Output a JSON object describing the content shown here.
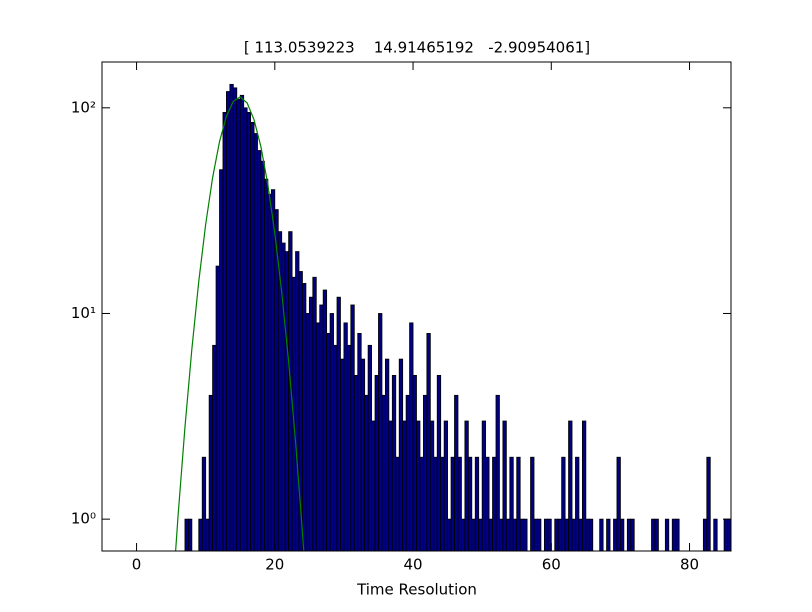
{
  "chart_data": {
    "type": "histogram",
    "title": "[ 113.0539223    14.91465192   -2.90954061]",
    "x_label": "Time Resolution",
    "bins": [
      7,
      7.5,
      8,
      8.5,
      9,
      9.5,
      10,
      10.5,
      11,
      11.5,
      12,
      12.5,
      13,
      13.5,
      14,
      14.5,
      15,
      15.5,
      16,
      16.5,
      17,
      17.5,
      18,
      18.5,
      19,
      19.5,
      20,
      20.5,
      21,
      21.5,
      22,
      22.5,
      23,
      23.5,
      24,
      24.5,
      25,
      25.5,
      26,
      26.5,
      27,
      27.5,
      28,
      28.5,
      29,
      29.5,
      30,
      30.5,
      31,
      31.5,
      32,
      32.5,
      33,
      33.5,
      34,
      34.5,
      35,
      35.5,
      36,
      36.5,
      37,
      37.5,
      38,
      38.5,
      39,
      39.5,
      40,
      40.5,
      41,
      41.5,
      42,
      42.5,
      43,
      43.5,
      44,
      44.5,
      45,
      45.5,
      46,
      46.5,
      47,
      47.5,
      48,
      48.5,
      49,
      49.5,
      50,
      50.5,
      51,
      51.5,
      52,
      52.5,
      53,
      53.5,
      54,
      54.5,
      55,
      55.5,
      56,
      56.5,
      57,
      57.5,
      58,
      58.5,
      59,
      59.5,
      60,
      60.5,
      61,
      61.5,
      62,
      62.5,
      63,
      63.5,
      64,
      64.5,
      65,
      65.5,
      66,
      66.5,
      67,
      67.5,
      68,
      68.5,
      69,
      69.5,
      70,
      70.5,
      71,
      71.5,
      72,
      72.5,
      73,
      73.5,
      74,
      74.5,
      75,
      75.5,
      76,
      76.5,
      77,
      77.5,
      78,
      78.5,
      79,
      79.5,
      80,
      80.5,
      81,
      81.5,
      82,
      82.5,
      83,
      83.5,
      84,
      84.5,
      85,
      85.5,
      86
    ],
    "counts": [
      1,
      1,
      0,
      0,
      1,
      2,
      1,
      4,
      7,
      17,
      50,
      95,
      120,
      130,
      125,
      110,
      115,
      100,
      95,
      85,
      75,
      62,
      55,
      45,
      38,
      40,
      32,
      25,
      22,
      20,
      25,
      15,
      20,
      16,
      14,
      10,
      12,
      15,
      9,
      11,
      13,
      8,
      10,
      7,
      12,
      6,
      9,
      7,
      11,
      5,
      8,
      6,
      4,
      7,
      3,
      5,
      10,
      4,
      6,
      3,
      5,
      2,
      6,
      3,
      4,
      9,
      5,
      3,
      2,
      4,
      8,
      3,
      2,
      5,
      2,
      3,
      1,
      2,
      4,
      2,
      1,
      3,
      2,
      1,
      2,
      1,
      3,
      2,
      1,
      2,
      4,
      1,
      3,
      1,
      2,
      1,
      2,
      1,
      1,
      0,
      2,
      1,
      1,
      0,
      1,
      1,
      0,
      1,
      1,
      2,
      1,
      3,
      1,
      2,
      1,
      3,
      1,
      1,
      0,
      0,
      1,
      0,
      1,
      0,
      1,
      2,
      1,
      0,
      1,
      1,
      0,
      0,
      0,
      0,
      0,
      1,
      1,
      0,
      0,
      1,
      0,
      1,
      1,
      0,
      0,
      0,
      0,
      0,
      0,
      0,
      1,
      2,
      0,
      1,
      0,
      0,
      1,
      1
    ],
    "color": "#000080",
    "edgecolor": "#000000",
    "fit": {
      "type": "line",
      "color": "#008000",
      "x": [
        5,
        6,
        7,
        8,
        9,
        10,
        11,
        12,
        13,
        14,
        15,
        16,
        17,
        18,
        19,
        20,
        21,
        22,
        23,
        24,
        25
      ],
      "values": [
        0.34,
        1.034,
        2.795,
        6.71,
        14.31,
        27.13,
        45.72,
        68.44,
        91.04,
        107.6,
        113.0,
        105.5,
        87.45,
        64.44,
        42.19,
        24.55,
        12.69,
        5.83,
        2.38,
        0.863,
        0.278
      ]
    },
    "xlim": [
      -5,
      86
    ],
    "xticks": [
      0,
      20,
      40,
      60,
      80
    ],
    "ylim": [
      0.7,
      167
    ],
    "yticks": [
      {
        "value": 1,
        "label": "10⁰"
      },
      {
        "value": 10,
        "label": "10¹"
      },
      {
        "value": 100,
        "label": "10²"
      }
    ],
    "log_y": true
  }
}
